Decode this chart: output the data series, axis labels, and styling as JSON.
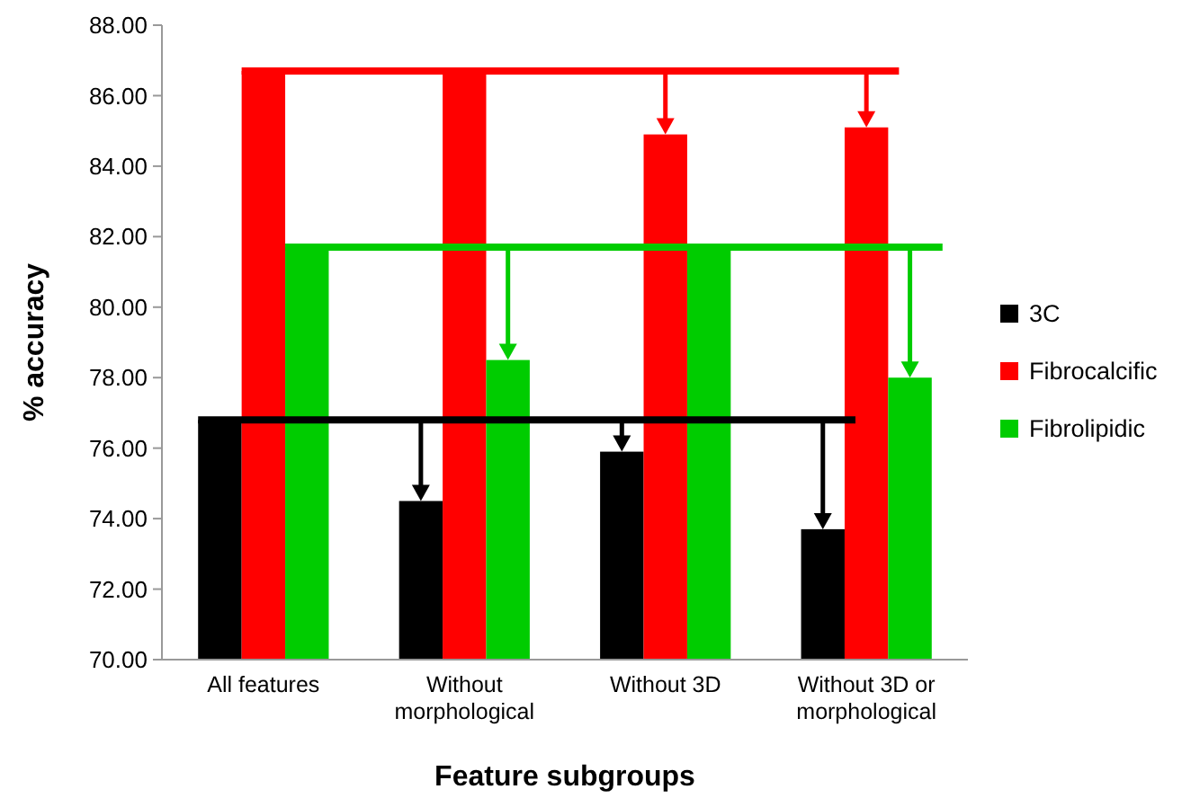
{
  "chart_data": {
    "type": "bar",
    "xlabel": "Feature subgroups",
    "ylabel": "% accuracy",
    "categories": [
      "All features",
      "Without morphological",
      "Without 3D",
      "Without 3D or morphological"
    ],
    "series": [
      {
        "name": "3C",
        "color": "#000000",
        "values": [
          76.8,
          74.5,
          75.9,
          73.7
        ]
      },
      {
        "name": "Fibrocalcific",
        "color": "#ff0000",
        "values": [
          86.7,
          86.7,
          84.9,
          85.1
        ]
      },
      {
        "name": "Fibrolipidic",
        "color": "#00cc00",
        "values": [
          81.7,
          78.5,
          81.7,
          78.0
        ]
      }
    ],
    "ylim": [
      70,
      88
    ],
    "yticks": [
      {
        "value": 70,
        "label": "70.00"
      },
      {
        "value": 72,
        "label": "72.00"
      },
      {
        "value": 74,
        "label": "74.00"
      },
      {
        "value": 76,
        "label": "76.00"
      },
      {
        "value": 78,
        "label": "78.00"
      },
      {
        "value": 80,
        "label": "80.00"
      },
      {
        "value": 82,
        "label": "82.00"
      },
      {
        "value": 84,
        "label": "84.00"
      },
      {
        "value": 86,
        "label": "86.00"
      },
      {
        "value": 88,
        "label": "88.00"
      }
    ],
    "ref_lines": [
      {
        "axis": "y",
        "value": 86.7,
        "color": "#ff0000"
      },
      {
        "axis": "y",
        "value": 81.7,
        "color": "#00cc00"
      },
      {
        "axis": "y",
        "value": 76.8,
        "color": "#000000"
      }
    ],
    "grid": false,
    "legend": "right"
  }
}
